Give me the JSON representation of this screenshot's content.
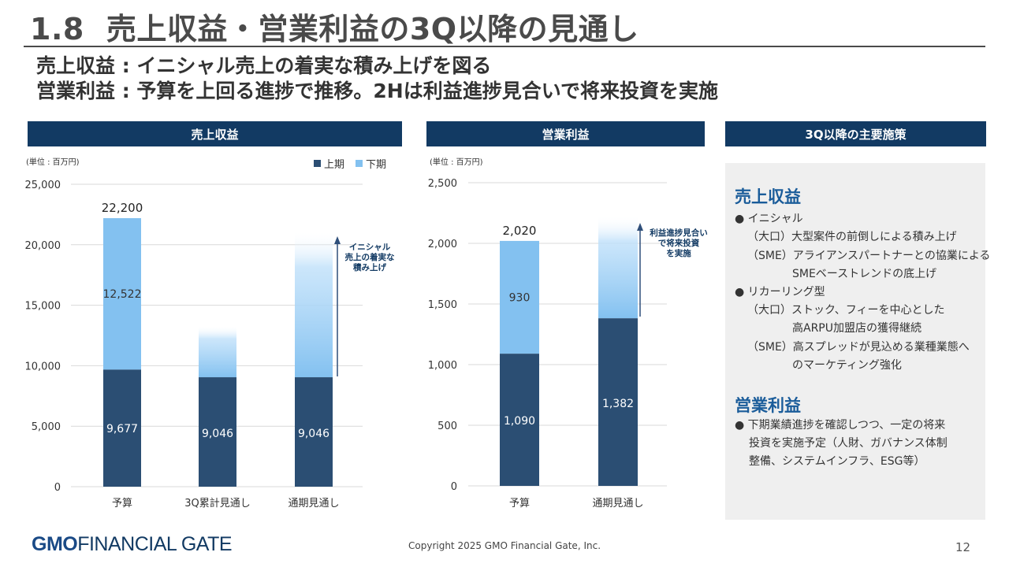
{
  "title": {
    "number": "1.8",
    "text": "売上収益・営業利益の3Q以降の見通し"
  },
  "subtitles": [
    "売上収益 : イニシャル売上の着実な積み上げを図る",
    "営業利益 : 予算を上回る進捗で推移。2Hは利益進捗見合いで将来投資を実施"
  ],
  "panels": {
    "revenue": {
      "header": "売上収益",
      "unit": "(単位 : 百万円)",
      "legend": {
        "h1": "上期",
        "h2": "下期"
      },
      "annotation": [
        "イニシャル",
        "売上の着実な",
        "積み上げ"
      ]
    },
    "profit": {
      "header": "営業利益",
      "unit": "(単位 : 百万円)",
      "annotation": [
        "利益進捗見合い",
        "で将来投資",
        "を実施"
      ]
    },
    "initiatives": {
      "header": "3Q以降の主要施策"
    }
  },
  "colors": {
    "navy": "#123a63",
    "h1": "#2b4e73",
    "h2": "#83c1f0",
    "accent": "#1a5c9a"
  },
  "chart_data": [
    {
      "type": "bar",
      "title": "売上収益",
      "categories": [
        "予算",
        "3Q累計見通し",
        "通期見通し"
      ],
      "series": [
        {
          "name": "上期",
          "values": [
            9677,
            9046,
            9046
          ],
          "labels": [
            "9,677",
            "9,046",
            "9,046"
          ]
        },
        {
          "name": "下期",
          "values": [
            12522,
            null,
            null
          ],
          "labels": [
            "12,522",
            "",
            ""
          ]
        }
      ],
      "totals": [
        "22,200",
        "",
        ""
      ],
      "projected_top": [
        null,
        13300,
        21200
      ],
      "ylim": [
        0,
        25000
      ],
      "yticks": [
        0,
        5000,
        10000,
        15000,
        20000,
        25000
      ],
      "ytick_labels": [
        "0",
        "5,000",
        "10,000",
        "15,000",
        "20,000",
        "25,000"
      ],
      "stacked": true
    },
    {
      "type": "bar",
      "title": "営業利益",
      "categories": [
        "予算",
        "通期見通し"
      ],
      "series": [
        {
          "name": "上期",
          "values": [
            1090,
            1382
          ],
          "labels": [
            "1,090",
            "1,382"
          ]
        },
        {
          "name": "下期",
          "values": [
            930,
            null
          ],
          "labels": [
            "930",
            ""
          ]
        }
      ],
      "totals": [
        "2,020",
        ""
      ],
      "projected_top": [
        null,
        2230
      ],
      "ylim": [
        0,
        2500
      ],
      "yticks": [
        0,
        500,
        1000,
        1500,
        2000,
        2500
      ],
      "ytick_labels": [
        "0",
        "500",
        "1,000",
        "1,500",
        "2,000",
        "2,500"
      ],
      "stacked": true
    }
  ],
  "initiatives": {
    "revenue_heading": "売上収益",
    "revenue_items": [
      "● イニシャル",
      "（大口）大型案件の前倒しによる積み上げ",
      "（SME）アライアンスパートナーとの協業による",
      "SMEベーストレンドの底上げ",
      "● リカーリング型",
      "（大口）ストック、フィーを中心とした",
      "高ARPU加盟店の獲得継続",
      "（SME）高スプレッドが見込める業種業態へ",
      "のマーケティング強化"
    ],
    "profit_heading": "営業利益",
    "profit_items": [
      "● 下期業績進捗を確認しつつ、一定の将来",
      "投資を実施予定（人財、ガバナンス体制",
      "整備、システムインフラ、ESG等）"
    ]
  },
  "footer": {
    "logo_bold": "GMO",
    "logo_rest": "FINANCIAL GATE",
    "copyright": "Copyright 2025 GMO Financial Gate, Inc.",
    "page": "12"
  }
}
